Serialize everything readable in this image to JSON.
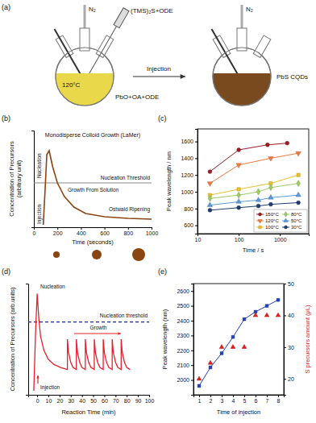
{
  "diagram": {
    "panel": "(a)",
    "gas": "N₂",
    "syringe": "(TMS)₂S+ODE",
    "temperature": "120°C",
    "precursors": "PbO+OA+ODE",
    "arrow": "Injection",
    "product": "PbS CQDs"
  },
  "chart_data": [
    {
      "panel": "(b)",
      "type": "line",
      "title": "Monodisperse Colloid Growth (LaMer)",
      "x_label": "Time (seconds)",
      "y_label": [
        "Concentration of Precursors",
        "(arbitrary unit)"
      ],
      "x": [
        80,
        95,
        110,
        130,
        160,
        200,
        260,
        340,
        440,
        600,
        800,
        1000
      ],
      "series": [
        {
          "color": "#8b4513",
          "values": [
            0.03,
            0.45,
            0.9,
            0.95,
            0.75,
            0.55,
            0.38,
            0.25,
            0.17,
            0.13,
            0.11,
            0.1
          ]
        }
      ],
      "xlim": [
        0,
        1000
      ],
      "xticks": [
        0,
        200,
        400,
        600,
        800,
        1000
      ],
      "ylim": [
        0,
        1.2
      ],
      "tick_labels": "x",
      "threshold": 0.55,
      "threshold_label": "Nucleation Threshold",
      "annotations": [
        "Nucleation",
        "Injection",
        "Growth From Solution",
        "Ostwald Ripening"
      ]
    },
    {
      "panel": "(c)",
      "type": "line",
      "x_label": "Time / s",
      "y_label": "Peak wavelength / nm",
      "log": "x",
      "xlim": [
        10,
        5000
      ],
      "xticks": [
        10,
        100,
        1000
      ],
      "ylim": [
        500,
        1750
      ],
      "yticks": [
        600,
        800,
        1000,
        1200,
        1400,
        1600
      ],
      "legend": "lower right",
      "series": [
        {
          "name": "150°C",
          "color": "#9b1c24",
          "marker": "circle",
          "x": [
            20,
            100,
            500,
            1500
          ],
          "values": [
            1240,
            1500,
            1560,
            1580
          ]
        },
        {
          "name": "120°C",
          "color": "#f07b3f",
          "marker": "triangle-down",
          "x": [
            20,
            100,
            600,
            2800
          ],
          "values": [
            1100,
            1320,
            1400,
            1460
          ]
        },
        {
          "name": "100°C",
          "color": "#e8c22a",
          "marker": "square",
          "x": [
            20,
            100,
            600,
            2800
          ],
          "values": [
            960,
            1030,
            1100,
            1200
          ]
        },
        {
          "name": "80°C",
          "color": "#9ccc65",
          "marker": "diamond",
          "x": [
            20,
            100,
            300,
            600,
            2800
          ],
          "values": [
            920,
            960,
            1000,
            1050,
            1100
          ]
        },
        {
          "name": "50°C",
          "color": "#5b9bd5",
          "marker": "triangle-up",
          "x": [
            20,
            100,
            300,
            600,
            2800
          ],
          "values": [
            840,
            880,
            900,
            930,
            960
          ]
        },
        {
          "name": "30°C",
          "color": "#1f3b6e",
          "marker": "circle",
          "x": [
            20,
            100,
            300,
            600,
            2800
          ],
          "values": [
            780,
            810,
            830,
            850,
            870
          ]
        }
      ]
    },
    {
      "panel": "(d)",
      "type": "line",
      "x_label": "Reaction Time (min)",
      "y_label": "Concentration of Precursors (arb.units)",
      "x": [
        -3,
        -1.5,
        0,
        1.5,
        3,
        6,
        10,
        15,
        21,
        27,
        27,
        28,
        30,
        32,
        35,
        35,
        36,
        38,
        40,
        43,
        43,
        44,
        46,
        48,
        51,
        51,
        52,
        54,
        56,
        59,
        59,
        60,
        62,
        64,
        67,
        67,
        68,
        70,
        72,
        75,
        75,
        76,
        78,
        80,
        83
      ],
      "series": [
        {
          "color": "#e8202a",
          "values": [
            0.04,
            0.6,
            1.0,
            0.75,
            0.58,
            0.44,
            0.35,
            0.3,
            0.27,
            0.25,
            0.55,
            0.42,
            0.32,
            0.27,
            0.25,
            0.55,
            0.42,
            0.32,
            0.27,
            0.25,
            0.55,
            0.42,
            0.32,
            0.27,
            0.25,
            0.55,
            0.42,
            0.32,
            0.27,
            0.25,
            0.55,
            0.42,
            0.32,
            0.27,
            0.25,
            0.55,
            0.42,
            0.32,
            0.27,
            0.25,
            0.55,
            0.42,
            0.32,
            0.27,
            0.25
          ]
        }
      ],
      "xlim": [
        -8,
        100
      ],
      "xticks": [
        0,
        10,
        20,
        30,
        40,
        50,
        60,
        70,
        80,
        90,
        100
      ],
      "ylim": [
        0,
        1.1
      ],
      "tick_labels": "x",
      "threshold": 0.72,
      "threshold_label": "Nucleation threshold",
      "annotations": [
        "Nucleation",
        "Injection",
        "Growth"
      ]
    },
    {
      "panel": "(e)",
      "type": "line",
      "x_label": "Time of injection",
      "y_label": "Peak wavelength (nm)",
      "y2_label": "S precursors amount (μL)",
      "x": [
        1,
        2,
        3,
        4,
        5,
        6,
        7,
        8
      ],
      "xlim": [
        0.5,
        8.5
      ],
      "xticks": [
        1,
        2,
        3,
        4,
        5,
        6,
        7,
        8
      ],
      "ylim": [
        1900,
        2650
      ],
      "yticks": [
        2000,
        2100,
        2200,
        2300,
        2400,
        2500,
        2600
      ],
      "y2lim": [
        15,
        50
      ],
      "y2ticks": [
        20,
        30,
        40,
        50
      ],
      "series": [
        {
          "color": "#1f3fbf",
          "marker": "square",
          "values": [
            1960,
            2085,
            2180,
            2290,
            2410,
            2460,
            2500,
            2540
          ]
        },
        {
          "color": "#e02020",
          "type": "scatter",
          "marker": "triangle-up",
          "axis": "y2",
          "values": [
            20,
            25,
            30,
            30,
            30,
            40,
            40,
            40
          ]
        }
      ]
    }
  ]
}
